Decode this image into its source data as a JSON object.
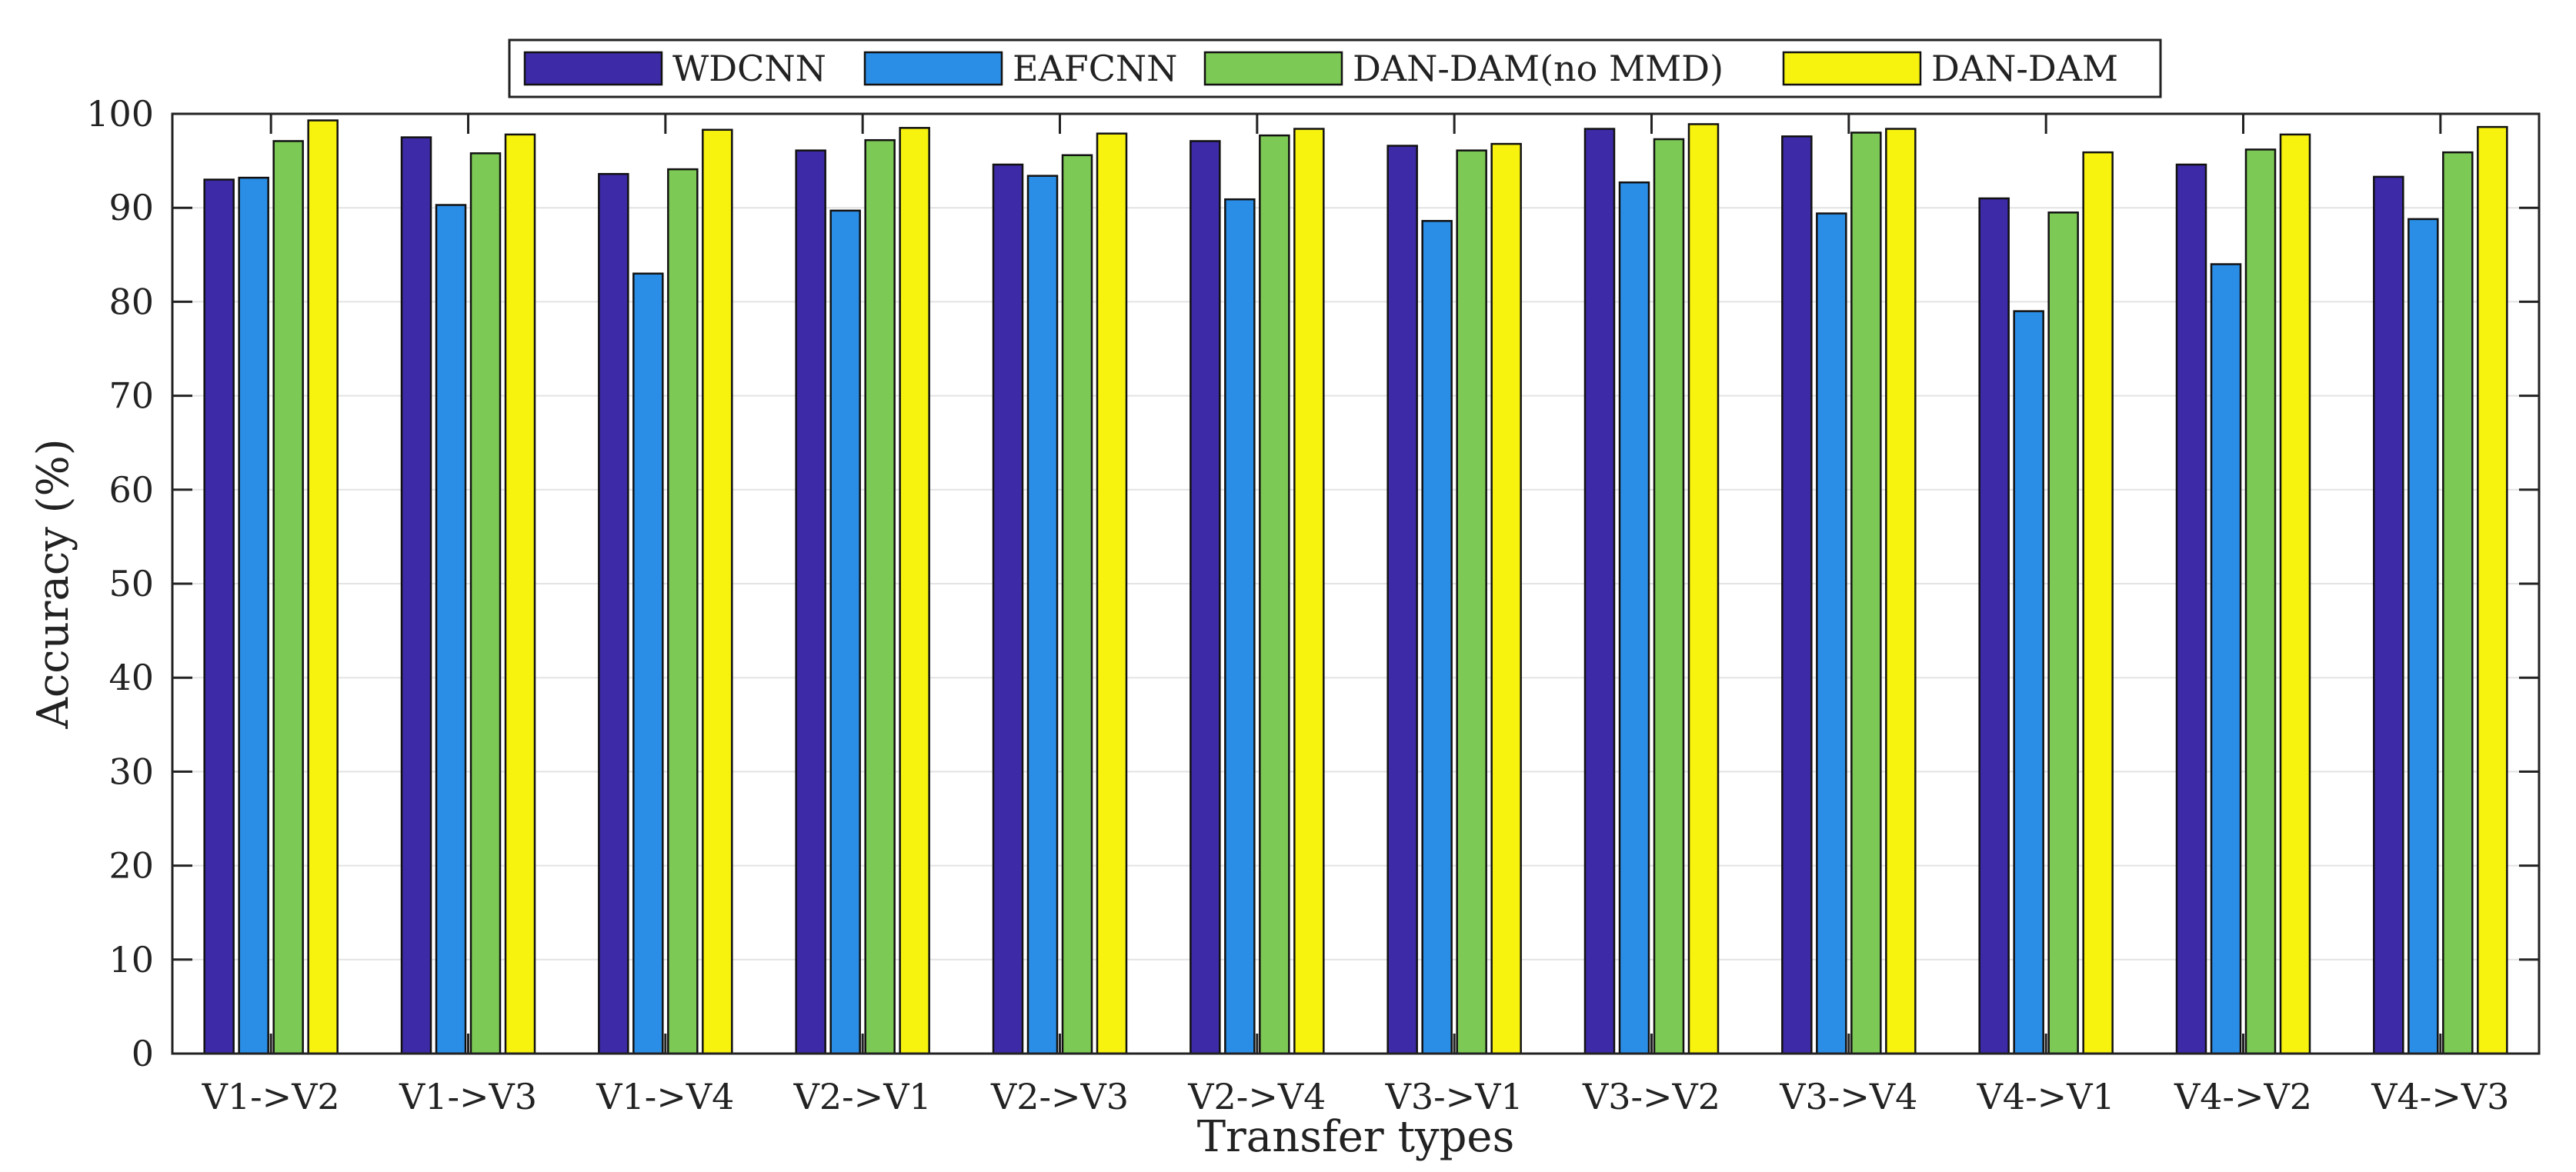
{
  "chart_data": {
    "type": "bar",
    "title": "",
    "xlabel": "Transfer types",
    "ylabel": "Accuracy (%)",
    "ylim": [
      0,
      100
    ],
    "yticks": [
      0,
      10,
      20,
      30,
      40,
      50,
      60,
      70,
      80,
      90,
      100
    ],
    "grid": true,
    "legend_position": "top-center",
    "categories": [
      "V1->V2",
      "V1->V3",
      "V1->V4",
      "V2->V1",
      "V2->V3",
      "V2->V4",
      "V3->V1",
      "V3->V2",
      "V3->V4",
      "V4->V1",
      "V4->V2",
      "V4->V3"
    ],
    "series": [
      {
        "name": "WDCNN",
        "color": "#3c2aa6",
        "values": [
          93.0,
          97.5,
          93.6,
          96.1,
          94.6,
          97.1,
          96.6,
          98.4,
          97.6,
          91.0,
          94.6,
          93.3
        ]
      },
      {
        "name": "EAFCNN",
        "color": "#2a8ee6",
        "values": [
          93.2,
          90.3,
          83.0,
          89.7,
          93.4,
          90.9,
          88.6,
          92.7,
          89.4,
          79.0,
          84.0,
          88.8
        ]
      },
      {
        "name": "DAN-DAM(no MMD)",
        "color": "#7dc955",
        "values": [
          97.1,
          95.8,
          94.1,
          97.2,
          95.6,
          97.7,
          96.1,
          97.3,
          98.0,
          89.5,
          96.2,
          95.9
        ]
      },
      {
        "name": "DAN-DAM",
        "color": "#f7f20e",
        "values": [
          99.3,
          97.8,
          98.3,
          98.5,
          97.9,
          98.4,
          96.8,
          98.9,
          98.4,
          95.9,
          97.8,
          98.6
        ]
      }
    ]
  }
}
